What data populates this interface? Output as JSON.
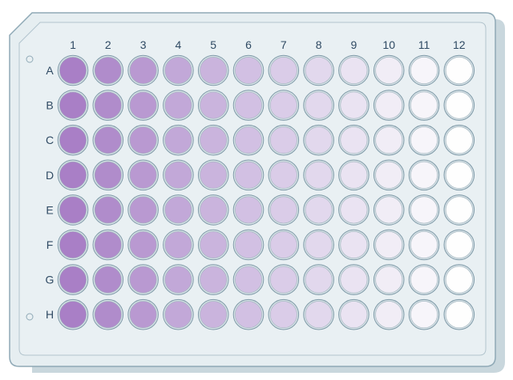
{
  "plate": {
    "columns": [
      "1",
      "2",
      "3",
      "4",
      "5",
      "6",
      "7",
      "8",
      "9",
      "10",
      "11",
      "12"
    ],
    "rows": [
      "A",
      "B",
      "C",
      "D",
      "E",
      "F",
      "G",
      "H"
    ],
    "colors": {
      "body": "#e6eef1",
      "body_edge": "#c6d4da",
      "border": "#8fa9b6",
      "shadow": "#c9d7dd",
      "well_ring": "#7f9aa8",
      "label": "#2f4a63"
    },
    "column_fill": [
      "#a97fc6",
      "#b08ccb",
      "#b999d1",
      "#c2a8d8",
      "#cab4dd",
      "#d2c0e3",
      "#dacce8",
      "#e2d8ed",
      "#eae3f2",
      "#f1edf6",
      "#f7f5fa",
      "#fefefe"
    ]
  }
}
